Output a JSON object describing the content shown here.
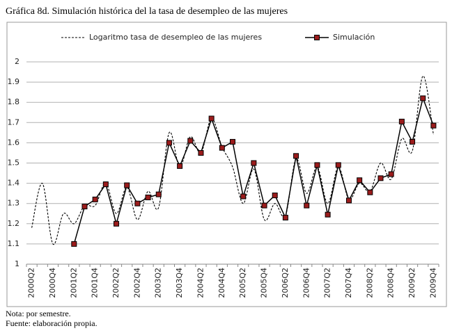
{
  "chart_data": {
    "type": "line",
    "title": "Gráfica 8d. Simulación histórica del la tasa de desempleo de las mujeres",
    "notes": [
      "Nota: por semestre.",
      "Fuente: elaboración propia."
    ],
    "categories": [
      "2000Q2",
      null,
      "2000Q4",
      null,
      "2001Q2",
      null,
      "2001Q4",
      null,
      "2002Q2",
      null,
      "2002Q4",
      null,
      "2003Q2",
      null,
      "2003Q4",
      null,
      "2004Q2",
      null,
      "2004Q4",
      null,
      "2005Q2",
      null,
      "2005Q4",
      null,
      "2006Q2",
      null,
      "2006Q4",
      null,
      "2007Q2",
      null,
      "2007Q4",
      null,
      "2008Q2",
      null,
      "2008Q4",
      null,
      "2009Q2",
      null,
      "2009Q4"
    ],
    "series": [
      {
        "name": "Logaritmo tasa de desempleo de las mujeres",
        "color": "#000000",
        "style": "dashed",
        "values": [
          1.18,
          1.4,
          1.1,
          1.25,
          1.2,
          1.29,
          1.29,
          1.4,
          1.25,
          1.38,
          1.22,
          1.36,
          1.28,
          1.65,
          1.48,
          1.63,
          1.55,
          1.72,
          1.58,
          1.48,
          1.3,
          1.47,
          1.22,
          1.3,
          1.24,
          1.52,
          1.35,
          1.48,
          1.3,
          1.48,
          1.32,
          1.4,
          1.36,
          1.5,
          1.42,
          1.62,
          1.56,
          1.93,
          1.64
        ]
      },
      {
        "name": "Simulación",
        "color": "#000000",
        "marker_color": "#9b1c1c",
        "style": "solid",
        "values": [
          null,
          null,
          null,
          null,
          1.1,
          1.285,
          1.32,
          1.395,
          1.2,
          1.39,
          1.3,
          1.33,
          1.345,
          1.6,
          1.485,
          1.61,
          1.55,
          1.72,
          1.575,
          1.605,
          1.335,
          1.5,
          1.29,
          1.34,
          1.23,
          1.535,
          1.29,
          1.49,
          1.245,
          1.49,
          1.315,
          1.415,
          1.355,
          1.425,
          1.445,
          1.705,
          1.605,
          1.82,
          1.685
        ]
      }
    ],
    "ylim": [
      1,
      2
    ],
    "yticks": [
      1,
      1.1,
      1.2,
      1.3,
      1.4,
      1.5,
      1.6,
      1.7,
      1.8,
      1.9,
      2
    ],
    "grid": true,
    "legend": "top"
  }
}
